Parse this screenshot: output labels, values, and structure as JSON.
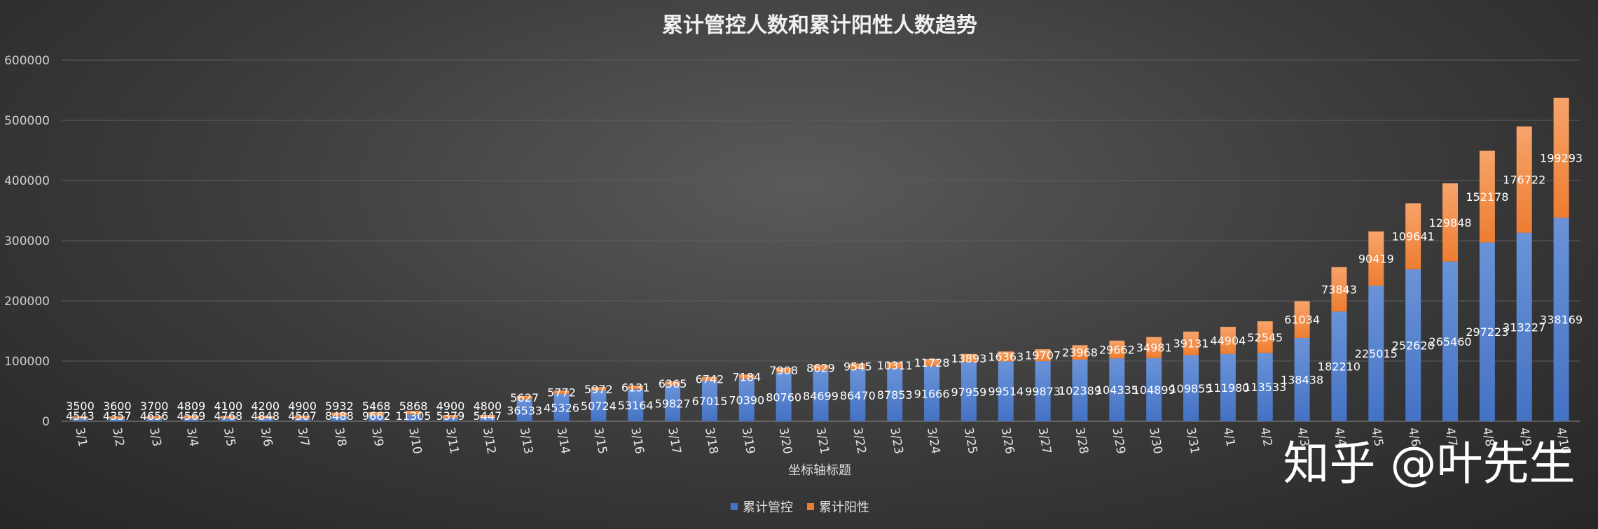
{
  "watermark": "知乎 @叶先生",
  "chart_data": {
    "type": "bar",
    "stacked": true,
    "title": "累计管控人数和累计阳性人数趋势",
    "xlabel": "坐标轴标题",
    "ylabel": "",
    "ylim": [
      0,
      600000
    ],
    "yticks": [
      0,
      100000,
      200000,
      300000,
      400000,
      500000,
      600000
    ],
    "grid": true,
    "legend_position": "bottom",
    "categories": [
      "3/1",
      "3/2",
      "3/3",
      "3/4",
      "3/5",
      "3/6",
      "3/7",
      "3/8",
      "3/9",
      "3/10",
      "3/11",
      "3/12",
      "3/13",
      "3/14",
      "3/15",
      "3/16",
      "3/17",
      "3/18",
      "3/19",
      "3/20",
      "3/21",
      "3/22",
      "3/23",
      "3/24",
      "3/25",
      "3/26",
      "3/27",
      "3/28",
      "3/29",
      "3/30",
      "3/31",
      "4/1",
      "4/2",
      "4/3",
      "4/4",
      "4/5",
      "4/6",
      "4/7",
      "4/8",
      "4/9",
      "4/10"
    ],
    "series": [
      {
        "name": "累计管控",
        "color": "#4472c4",
        "values": [
          4543,
          4357,
          4656,
          4569,
          4768,
          4848,
          4507,
          8488,
          9662,
          11305,
          5379,
          5447,
          36533,
          45326,
          50724,
          53164,
          59827,
          67015,
          70390,
          80760,
          84699,
          86470,
          87853,
          91666,
          97959,
          99514,
          99873,
          102389,
          104335,
          104899,
          109855,
          111980,
          113533,
          138438,
          182210,
          225015,
          252620,
          265460,
          297223,
          313227,
          338169
        ]
      },
      {
        "name": "累计阳性",
        "color": "#ed7d31",
        "values": [
          3500,
          3600,
          3700,
          4809,
          4100,
          4200,
          4900,
          5932,
          5468,
          5868,
          4900,
          4800,
          5627,
          5772,
          5972,
          6131,
          6365,
          6742,
          7184,
          7908,
          8629,
          9545,
          10311,
          11728,
          13893,
          16363,
          19707,
          23968,
          29662,
          34981,
          39131,
          44904,
          52545,
          61034,
          73843,
          90419,
          109641,
          129848,
          152178,
          176722,
          199293
        ]
      }
    ]
  }
}
